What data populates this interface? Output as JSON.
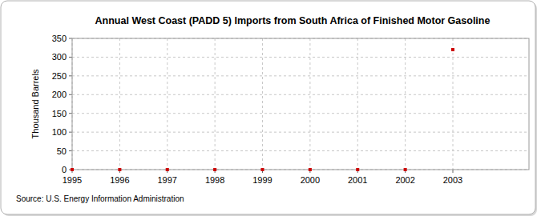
{
  "chart_data": {
    "type": "scatter",
    "title": "Annual West Coast (PADD 5) Imports from South Africa of Finished Motor Gasoline",
    "y_label": "Thousand Barrels",
    "source": "Source: U.S. Energy Information Administration",
    "x": [
      1995,
      1996,
      1997,
      1998,
      1999,
      2000,
      2001,
      2002,
      2003
    ],
    "values": [
      0,
      0,
      0,
      0,
      0,
      0,
      0,
      0,
      320
    ],
    "color": "#cc0000",
    "marker": "square",
    "xlim": [
      1995,
      2004.6
    ],
    "xticks": [
      1995,
      1996,
      1997,
      1998,
      1999,
      2000,
      2001,
      2002,
      2003
    ],
    "ylim": [
      0,
      350
    ],
    "yticks": [
      0,
      50,
      100,
      150,
      200,
      250,
      300,
      350
    ],
    "grid": true
  }
}
